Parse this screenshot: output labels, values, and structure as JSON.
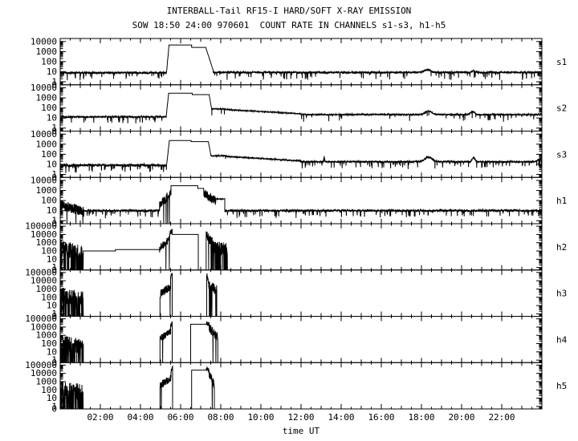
{
  "title": "INTERBALL-Tail RF15-I HARD/SOFT X-RAY EMISSION",
  "subtitle": "SOW 18:50 24:00 970601  COUNT RATE IN CHANNELS s1-s3, h1-h5",
  "colors": {
    "foreground": "#000000",
    "background": "#ffffff"
  },
  "chart_data": {
    "type": "line",
    "title": "INTERBALL-Tail RF15-I HARD/SOFT X-RAY EMISSION",
    "subtitle": "SOW 18:50 24:00 970601  COUNT RATE IN CHANNELS s1-s3, h1-h5",
    "xlabel": "time UT",
    "x_range_hours": [
      0,
      24
    ],
    "x_major_tick_hours": [
      2,
      4,
      6,
      8,
      10,
      12,
      14,
      16,
      18,
      20,
      22
    ],
    "x_tick_labels": [
      "02:00",
      "04:00",
      "06:00",
      "08:00",
      "10:00",
      "12:00",
      "14:00",
      "16:00",
      "18:00",
      "20:00",
      "22:00"
    ],
    "grid": false,
    "legend": "none",
    "yscale": "log",
    "panels": [
      {
        "id": "s1",
        "label": "s1",
        "ymax_exp": 4,
        "ymin": 0.5,
        "seed": 11,
        "yticks": [
          {
            "v": 10000,
            "label": "10000"
          },
          {
            "v": 1000,
            "label": "1000"
          },
          {
            "v": 100,
            "label": "100"
          },
          {
            "v": 10,
            "label": "10"
          },
          {
            "v": 1,
            "label": "1"
          },
          {
            "v": 0.5,
            "label": "0"
          }
        ],
        "bumps": [
          {
            "c": 18.3,
            "w": 0.25,
            "f": 1.7
          },
          {
            "c": 20.6,
            "w": 0.12,
            "f": 1.4
          }
        ],
        "segments": [
          {
            "t0": 0,
            "t1": 5.3,
            "mode": "noise",
            "level": 8,
            "amp": 0.16,
            "dprob": 0.04
          },
          {
            "t0": 5.3,
            "t1": 5.42,
            "mode": "ramp",
            "from": 10,
            "to": 4200,
            "amp": 0.06
          },
          {
            "t0": 5.42,
            "t1": 6.55,
            "mode": "flat",
            "level": 4500
          },
          {
            "t0": 6.55,
            "t1": 7.25,
            "mode": "flat",
            "level": 2600
          },
          {
            "t0": 7.25,
            "t1": 7.62,
            "mode": "ramp",
            "from": 2600,
            "to": 14,
            "amp": 0.02
          },
          {
            "t0": 7.62,
            "t1": 24,
            "mode": "noise",
            "level": 8.5,
            "amp": 0.16,
            "dprob": 0.04
          }
        ]
      },
      {
        "id": "s2",
        "label": "s2",
        "ymax_exp": 4,
        "ymin": 0.5,
        "seed": 22,
        "yticks": [
          {
            "v": 10000,
            "label": "10000"
          },
          {
            "v": 1000,
            "label": "1000"
          },
          {
            "v": 100,
            "label": "100"
          },
          {
            "v": 10,
            "label": "10"
          },
          {
            "v": 1,
            "label": "1"
          },
          {
            "v": 0.5,
            "label": "0"
          }
        ],
        "bumps": [
          {
            "c": 18.35,
            "w": 0.22,
            "f": 2.2
          },
          {
            "c": 20.55,
            "w": 0.13,
            "f": 2.0
          }
        ],
        "segments": [
          {
            "t0": 0,
            "t1": 5.28,
            "mode": "noise",
            "level": 13,
            "amp": 0.13,
            "dprob": 0.03
          },
          {
            "t0": 5.28,
            "t1": 5.4,
            "mode": "ramp",
            "from": 14,
            "to": 2600,
            "amp": 0.06
          },
          {
            "t0": 5.4,
            "t1": 6.58,
            "mode": "flat",
            "level": 2900
          },
          {
            "t0": 6.58,
            "t1": 7.42,
            "mode": "flat",
            "level": 2100
          },
          {
            "t0": 7.42,
            "t1": 7.55,
            "mode": "ramp",
            "from": 2100,
            "to": 70,
            "amp": 0.03
          },
          {
            "t0": 7.55,
            "t1": 8.25,
            "mode": "noise",
            "level": 80,
            "amp": 0.08,
            "dprob": 0.01
          },
          {
            "t0": 8.25,
            "t1": 12.0,
            "mode": "ramp",
            "from": 70,
            "to": 26,
            "amp": 0.09
          },
          {
            "t0": 12.0,
            "t1": 24,
            "mode": "noise",
            "level": 22,
            "amp": 0.11,
            "dprob": 0.02
          }
        ]
      },
      {
        "id": "s3",
        "label": "s3",
        "ymax_exp": 4,
        "ymin": 0.5,
        "seed": 33,
        "yticks": [
          {
            "v": 10000,
            "label": "10000"
          },
          {
            "v": 1000,
            "label": "1000"
          },
          {
            "v": 100,
            "label": "100"
          },
          {
            "v": 10,
            "label": "10"
          },
          {
            "v": 1,
            "label": "1"
          },
          {
            "v": 0.5,
            "label": "0"
          }
        ],
        "bumps": [
          {
            "c": 18.35,
            "w": 0.25,
            "f": 3.0
          },
          {
            "c": 20.6,
            "w": 0.1,
            "f": 2.6
          },
          {
            "c": 13.15,
            "w": 0.03,
            "f": 3.0
          },
          {
            "c": 23.9,
            "w": 0.15,
            "f": 1.8
          }
        ],
        "segments": [
          {
            "t0": 0,
            "t1": 5.3,
            "mode": "noise",
            "level": 8,
            "amp": 0.2,
            "dprob": 0.06
          },
          {
            "t0": 5.3,
            "t1": 5.44,
            "mode": "ramp",
            "from": 9,
            "to": 2100,
            "amp": 0.06
          },
          {
            "t0": 5.44,
            "t1": 6.52,
            "mode": "flat",
            "level": 2300
          },
          {
            "t0": 6.52,
            "t1": 7.38,
            "mode": "flat",
            "level": 1800
          },
          {
            "t0": 7.38,
            "t1": 7.52,
            "mode": "ramp",
            "from": 1800,
            "to": 60,
            "amp": 0.03
          },
          {
            "t0": 7.52,
            "t1": 8.3,
            "mode": "noise",
            "level": 70,
            "amp": 0.09,
            "dprob": 0.01
          },
          {
            "t0": 8.3,
            "t1": 12.0,
            "mode": "ramp",
            "from": 60,
            "to": 22,
            "amp": 0.1
          },
          {
            "t0": 12.0,
            "t1": 24,
            "mode": "noise",
            "level": 18,
            "amp": 0.14,
            "dprob": 0.04
          }
        ]
      },
      {
        "id": "h1",
        "label": "h1",
        "ymax_exp": 4,
        "ymin": 0.5,
        "seed": 44,
        "yticks": [
          {
            "v": 10000,
            "label": "10000"
          },
          {
            "v": 1000,
            "label": "1000"
          },
          {
            "v": 100,
            "label": "100"
          },
          {
            "v": 10,
            "label": "10"
          },
          {
            "v": 1,
            "label": "1"
          },
          {
            "v": 0.5,
            "label": "0"
          }
        ],
        "bumps": [],
        "segments": [
          {
            "t0": 0,
            "t1": 1.15,
            "mode": "spiky",
            "from": 60,
            "to": 15,
            "amp": 0.5,
            "dfrac": 0.02
          },
          {
            "t0": 1.15,
            "t1": 4.95,
            "mode": "noise",
            "level": 10,
            "amp": 0.17,
            "dprob": 0.04
          },
          {
            "t0": 4.95,
            "t1": 5.52,
            "mode": "spiky",
            "from": 60,
            "to": 900,
            "amp": 0.5,
            "dfrac": 0.02
          },
          {
            "t0": 5.52,
            "t1": 6.85,
            "mode": "flat",
            "level": 3000
          },
          {
            "t0": 6.85,
            "t1": 7.15,
            "mode": "flat",
            "level": 1600
          },
          {
            "t0": 7.15,
            "t1": 7.75,
            "mode": "spiky",
            "from": 800,
            "to": 160,
            "amp": 0.45,
            "dfrac": 0
          },
          {
            "t0": 7.75,
            "t1": 8.2,
            "mode": "noise",
            "level": 140,
            "amp": 0.07,
            "dprob": 0
          },
          {
            "t0": 8.2,
            "t1": 24,
            "mode": "noise",
            "level": 10,
            "amp": 0.17,
            "dprob": 0.04
          }
        ]
      },
      {
        "id": "h2",
        "label": "h2",
        "ymax_exp": 5,
        "ymin": 0.5,
        "seed": 55,
        "yticks": [
          {
            "v": 100000,
            "label": "100000"
          },
          {
            "v": 10000,
            "label": "10000"
          },
          {
            "v": 1000,
            "label": "1000"
          },
          {
            "v": 100,
            "label": "100"
          },
          {
            "v": 10,
            "label": "10"
          },
          {
            "v": 1,
            "label": "1"
          },
          {
            "v": 0.5,
            "label": "0"
          }
        ],
        "bumps": [],
        "segments": [
          {
            "t0": 0,
            "t1": 0.3,
            "mode": "spiky",
            "from": 900,
            "to": 500,
            "amp": 0.8,
            "dfrac": 0.12
          },
          {
            "t0": 0.3,
            "t1": 1.15,
            "mode": "spiky",
            "from": 400,
            "to": 150,
            "amp": 1.0,
            "dfrac": 0.28
          },
          {
            "t0": 1.15,
            "t1": 2.75,
            "mode": "flat",
            "level": 100
          },
          {
            "t0": 2.75,
            "t1": 4.95,
            "mode": "flat",
            "level": 150
          },
          {
            "t0": 4.95,
            "t1": 5.45,
            "mode": "spiky",
            "from": 300,
            "to": 6000,
            "amp": 0.5,
            "dfrac": 0.02
          },
          {
            "t0": 5.45,
            "t1": 5.58,
            "mode": "spiky",
            "from": 15000,
            "to": 50000,
            "amp": 0.3,
            "dfrac": 0
          },
          {
            "t0": 5.58,
            "t1": 6.88,
            "mode": "flat",
            "level": 10000
          },
          {
            "t0": 6.88,
            "t1": 7.27,
            "mode": "floor"
          },
          {
            "t0": 7.27,
            "t1": 7.5,
            "mode": "spiky",
            "from": 30000,
            "to": 3000,
            "amp": 0.6,
            "dfrac": 0.08
          },
          {
            "t0": 7.5,
            "t1": 8.33,
            "mode": "spiky",
            "from": 2000,
            "to": 300,
            "amp": 0.9,
            "dfrac": 0.3
          },
          {
            "t0": 8.33,
            "t1": 24,
            "mode": "floor"
          }
        ]
      },
      {
        "id": "h3",
        "label": "h3",
        "ymax_exp": 5,
        "ymin": 0.5,
        "seed": 66,
        "yticks": [
          {
            "v": 100000,
            "label": "100000"
          },
          {
            "v": 10000,
            "label": "10000"
          },
          {
            "v": 1000,
            "label": "1000"
          },
          {
            "v": 100,
            "label": "100"
          },
          {
            "v": 10,
            "label": "10"
          },
          {
            "v": 1,
            "label": "1"
          },
          {
            "v": 0.5,
            "label": "0"
          }
        ],
        "bumps": [],
        "segments": [
          {
            "t0": 0,
            "t1": 1.15,
            "mode": "spiky",
            "from": 500,
            "to": 200,
            "amp": 1.0,
            "dfrac": 0.3
          },
          {
            "t0": 1.15,
            "t1": 4.97,
            "mode": "floor"
          },
          {
            "t0": 4.97,
            "t1": 5.5,
            "mode": "spiky",
            "from": 400,
            "to": 3500,
            "amp": 0.5,
            "dfrac": 0.03
          },
          {
            "t0": 5.5,
            "t1": 5.58,
            "mode": "spiky",
            "from": 30000,
            "to": 80000,
            "amp": 0.3,
            "dfrac": 0
          },
          {
            "t0": 5.58,
            "t1": 7.3,
            "mode": "floor"
          },
          {
            "t0": 7.3,
            "t1": 7.4,
            "mode": "spiky",
            "from": 80000,
            "to": 8000,
            "amp": 0.3,
            "dfrac": 0
          },
          {
            "t0": 7.4,
            "t1": 7.8,
            "mode": "spiky",
            "from": 6000,
            "to": 1500,
            "amp": 0.6,
            "dfrac": 0.08
          },
          {
            "t0": 7.8,
            "t1": 24,
            "mode": "floor"
          }
        ]
      },
      {
        "id": "h4",
        "label": "h4",
        "ymax_exp": 5,
        "ymin": 0.5,
        "seed": 77,
        "yticks": [
          {
            "v": 100000,
            "label": "100000"
          },
          {
            "v": 10000,
            "label": "10000"
          },
          {
            "v": 1000,
            "label": "1000"
          },
          {
            "v": 100,
            "label": "100"
          },
          {
            "v": 10,
            "label": "10"
          },
          {
            "v": 1,
            "label": "1"
          },
          {
            "v": 0.5,
            "label": "0"
          }
        ],
        "bumps": [],
        "segments": [
          {
            "t0": 0,
            "t1": 1.15,
            "mode": "spiky",
            "from": 400,
            "to": 150,
            "amp": 1.0,
            "dfrac": 0.3
          },
          {
            "t0": 1.15,
            "t1": 4.97,
            "mode": "floor"
          },
          {
            "t0": 4.97,
            "t1": 5.5,
            "mode": "spiky",
            "from": 600,
            "to": 4500,
            "amp": 0.45,
            "dfrac": 0.02
          },
          {
            "t0": 5.5,
            "t1": 5.58,
            "mode": "spiky",
            "from": 20000,
            "to": 40000,
            "amp": 0.3,
            "dfrac": 0
          },
          {
            "t0": 5.58,
            "t1": 6.5,
            "mode": "floor"
          },
          {
            "t0": 6.5,
            "t1": 7.28,
            "mode": "flat",
            "level": 22000
          },
          {
            "t0": 7.28,
            "t1": 7.42,
            "mode": "spiky",
            "from": 45000,
            "to": 28000,
            "amp": 0.25,
            "dfrac": 0
          },
          {
            "t0": 7.42,
            "t1": 7.85,
            "mode": "spiky",
            "from": 20000,
            "to": 900,
            "amp": 0.6,
            "dfrac": 0.05
          },
          {
            "t0": 7.85,
            "t1": 24,
            "mode": "floor"
          }
        ]
      },
      {
        "id": "h5",
        "label": "h5",
        "ymax_exp": 5,
        "ymin": 0.5,
        "seed": 88,
        "yticks": [
          {
            "v": 100000,
            "label": "100000"
          },
          {
            "v": 10000,
            "label": "10000"
          },
          {
            "v": 1000,
            "label": "1000"
          },
          {
            "v": 100,
            "label": "100"
          },
          {
            "v": 10,
            "label": "10"
          },
          {
            "v": 1,
            "label": "1"
          },
          {
            "v": 0.5,
            "label": "0"
          }
        ],
        "bumps": [],
        "segments": [
          {
            "t0": 0,
            "t1": 1.15,
            "mode": "spiky",
            "from": 400,
            "to": 150,
            "amp": 1.0,
            "dfrac": 0.3
          },
          {
            "t0": 1.15,
            "t1": 4.97,
            "mode": "floor"
          },
          {
            "t0": 4.97,
            "t1": 5.52,
            "mode": "spiky",
            "from": 500,
            "to": 5000,
            "amp": 0.45,
            "dfrac": 0.02
          },
          {
            "t0": 5.52,
            "t1": 5.6,
            "mode": "spiky",
            "from": 30000,
            "to": 70000,
            "amp": 0.3,
            "dfrac": 0
          },
          {
            "t0": 5.6,
            "t1": 6.55,
            "mode": "floor"
          },
          {
            "t0": 6.55,
            "t1": 7.28,
            "mode": "flat",
            "level": 25000
          },
          {
            "t0": 7.28,
            "t1": 7.4,
            "mode": "spiky",
            "from": 50000,
            "to": 28000,
            "amp": 0.25,
            "dfrac": 0
          },
          {
            "t0": 7.4,
            "t1": 7.68,
            "mode": "spiky",
            "from": 22000,
            "to": 700,
            "amp": 0.6,
            "dfrac": 0.05
          },
          {
            "t0": 7.68,
            "t1": 24,
            "mode": "floor"
          }
        ]
      }
    ]
  }
}
